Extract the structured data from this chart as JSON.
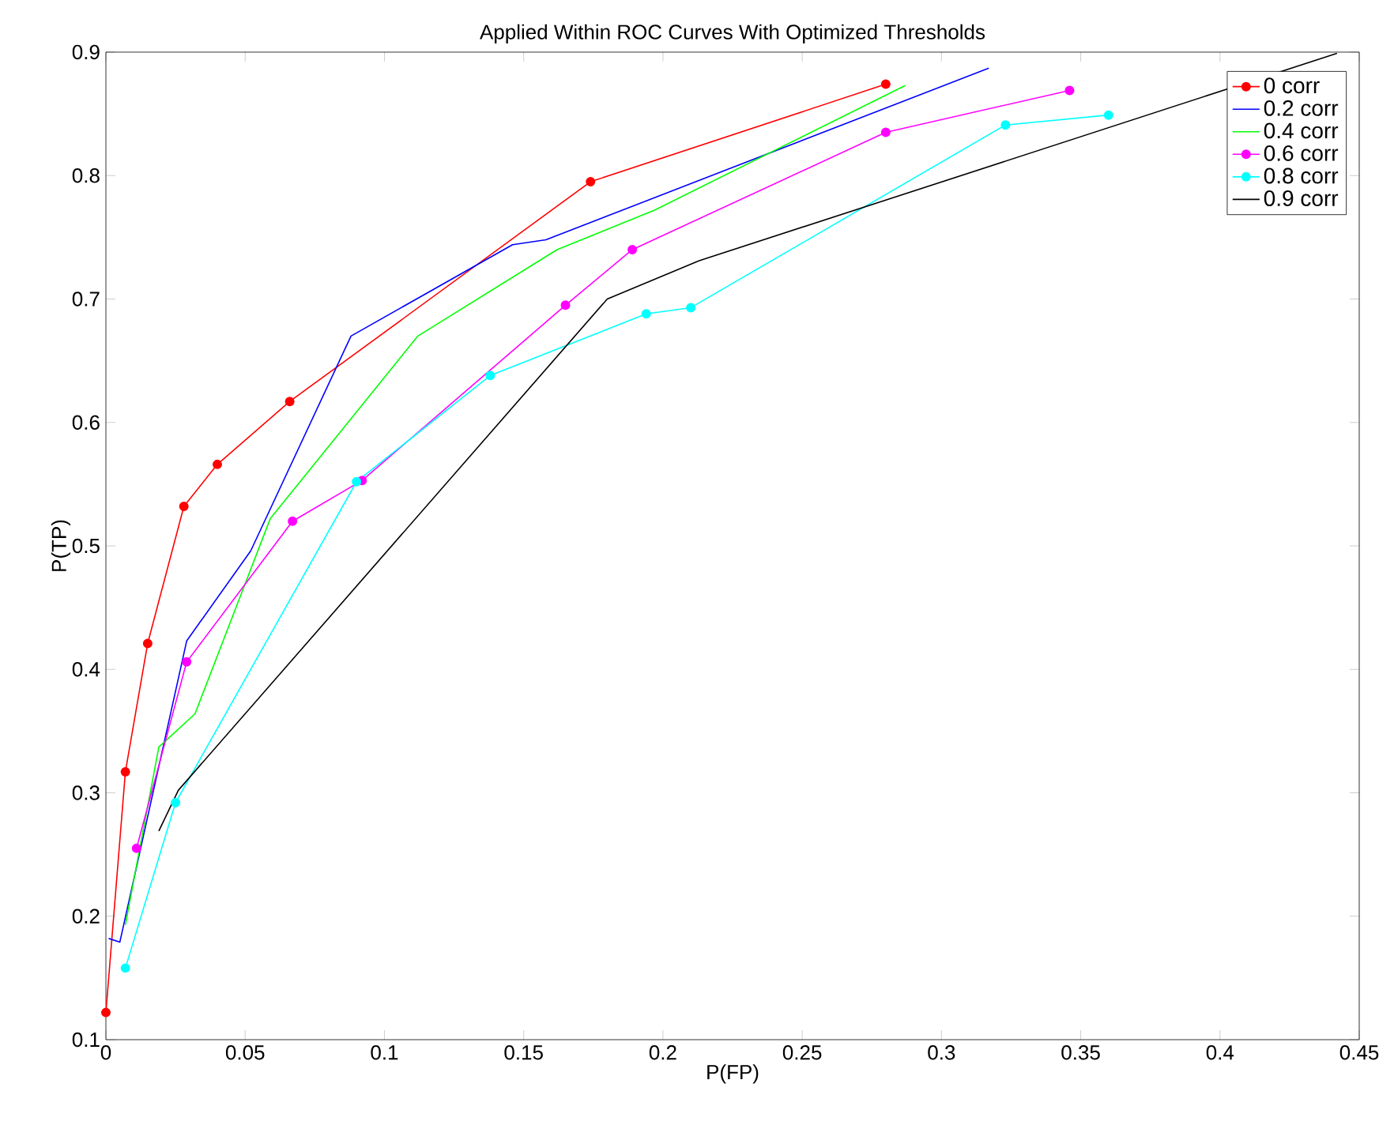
{
  "chart_data": {
    "type": "line",
    "title": "Applied Within ROC Curves With Optimized Thresholds",
    "xlabel": "P(FP)",
    "ylabel": "P(TP)",
    "xlim": [
      0,
      0.45
    ],
    "ylim": [
      0.1,
      0.9
    ],
    "xticks": [
      0,
      0.05,
      0.1,
      0.15,
      0.2,
      0.25,
      0.3,
      0.35,
      0.4,
      0.45
    ],
    "yticks": [
      0.1,
      0.2,
      0.3,
      0.4,
      0.5,
      0.6,
      0.7,
      0.8,
      0.9
    ],
    "grid": false,
    "legend": "top right",
    "line_style": "solid",
    "series": [
      {
        "name": "0 corr",
        "color": "#ff0000",
        "marker": "circle",
        "x": [
          0,
          0.007,
          0.015,
          0.028,
          0.04,
          0.066,
          0.174,
          0.28
        ],
        "values": [
          0.122,
          0.317,
          0.421,
          0.532,
          0.566,
          0.617,
          0.795,
          0.874
        ]
      },
      {
        "name": "0.2 corr",
        "color": "#0000ff",
        "marker": "none",
        "x": [
          0.001,
          0.005,
          0.029,
          0.052,
          0.088,
          0.146,
          0.158,
          0.317
        ],
        "values": [
          0.182,
          0.179,
          0.423,
          0.496,
          0.67,
          0.744,
          0.748,
          0.887
        ]
      },
      {
        "name": "0.4 corr",
        "color": "#00ff00",
        "marker": "none",
        "x": [
          0.007,
          0.019,
          0.032,
          0.059,
          0.112,
          0.162,
          0.197,
          0.287
        ],
        "values": [
          0.193,
          0.337,
          0.364,
          0.522,
          0.67,
          0.74,
          0.772,
          0.873
        ]
      },
      {
        "name": "0.6 corr",
        "color": "#ff00ff",
        "marker": "circle",
        "x": [
          0.011,
          0.029,
          0.067,
          0.092,
          0.165,
          0.189,
          0.28,
          0.346
        ],
        "values": [
          0.255,
          0.406,
          0.52,
          0.553,
          0.695,
          0.74,
          0.835,
          0.869
        ]
      },
      {
        "name": "0.8 corr",
        "color": "#00ffff",
        "marker": "circle",
        "x": [
          0.007,
          0.025,
          0.09,
          0.138,
          0.194,
          0.21,
          0.323,
          0.36
        ],
        "values": [
          0.158,
          0.292,
          0.552,
          0.638,
          0.688,
          0.693,
          0.841,
          0.849
        ]
      },
      {
        "name": "0.9 corr",
        "color": "#000000",
        "marker": "none",
        "x": [
          0.019,
          0.026,
          0.18,
          0.213,
          0.442
        ],
        "values": [
          0.269,
          0.302,
          0.7,
          0.731,
          0.899
        ]
      }
    ]
  }
}
